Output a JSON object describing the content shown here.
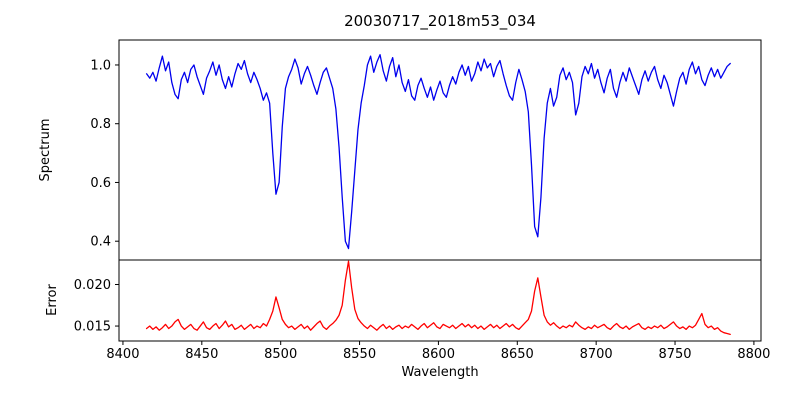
{
  "chart_data": {
    "type": "line",
    "title": "20030717_2018m53_034",
    "xlabel": "Wavelength",
    "xlim": [
      8397.5,
      8804.5
    ],
    "x_ticks": [
      8400,
      8450,
      8500,
      8550,
      8600,
      8650,
      8700,
      8750,
      8800
    ],
    "x_tick_labels": [
      "8400",
      "8450",
      "8500",
      "8550",
      "8600",
      "8650",
      "8700",
      "8750",
      "8800"
    ],
    "x_start": 8415,
    "x_step": 2,
    "grid": false,
    "legend": "none",
    "background_color": "#ffffff",
    "axis_color": "#000000",
    "panels": [
      {
        "name": "spectrum",
        "ylabel": "Spectrum",
        "ylim": [
          0.336,
          1.085
        ],
        "y_ticks": [
          0.4,
          0.6,
          0.8,
          1.0
        ],
        "y_tick_labels": [
          "0.4",
          "0.6",
          "0.8",
          "1.0"
        ]
      },
      {
        "name": "error",
        "ylabel": "Error",
        "ylim": [
          0.0132,
          0.02295
        ],
        "y_ticks": [
          0.015,
          0.02
        ],
        "y_tick_labels": [
          "0.015",
          "0.020"
        ]
      }
    ],
    "absorption_lines": [
      {
        "wavelength": 8498,
        "min_flux": 0.56
      },
      {
        "wavelength": 8542,
        "min_flux": 0.375
      },
      {
        "wavelength": 8662,
        "min_flux": 0.415
      }
    ],
    "series": [
      {
        "name": "spectrum",
        "color": "#0000ee",
        "panel": 0,
        "values": [
          0.97,
          0.955,
          0.975,
          0.945,
          0.99,
          1.03,
          0.98,
          1.01,
          0.94,
          0.9,
          0.885,
          0.95,
          0.975,
          0.94,
          0.985,
          1.0,
          0.96,
          0.93,
          0.9,
          0.955,
          0.98,
          1.01,
          0.965,
          1.0,
          0.95,
          0.92,
          0.96,
          0.925,
          0.97,
          1.005,
          0.985,
          1.015,
          0.97,
          0.94,
          0.975,
          0.95,
          0.92,
          0.88,
          0.905,
          0.87,
          0.7,
          0.56,
          0.6,
          0.79,
          0.92,
          0.96,
          0.985,
          1.02,
          0.99,
          0.935,
          0.97,
          0.995,
          0.965,
          0.93,
          0.9,
          0.94,
          0.975,
          0.99,
          0.955,
          0.92,
          0.85,
          0.72,
          0.55,
          0.4,
          0.375,
          0.5,
          0.64,
          0.78,
          0.87,
          0.93,
          1.0,
          1.03,
          0.975,
          1.01,
          1.035,
          0.98,
          0.945,
          0.995,
          1.025,
          0.96,
          1.0,
          0.94,
          0.91,
          0.95,
          0.895,
          0.88,
          0.93,
          0.955,
          0.92,
          0.89,
          0.925,
          0.88,
          0.915,
          0.945,
          0.905,
          0.89,
          0.93,
          0.96,
          0.935,
          0.975,
          1.0,
          0.965,
          0.995,
          0.945,
          0.97,
          1.01,
          0.98,
          1.02,
          0.99,
          1.005,
          0.96,
          0.995,
          1.015,
          0.97,
          0.93,
          0.895,
          0.88,
          0.94,
          0.985,
          0.95,
          0.91,
          0.84,
          0.66,
          0.45,
          0.415,
          0.55,
          0.75,
          0.87,
          0.92,
          0.86,
          0.89,
          0.965,
          0.99,
          0.95,
          0.975,
          0.94,
          0.83,
          0.87,
          0.96,
          0.995,
          0.97,
          1.005,
          0.955,
          0.985,
          0.94,
          0.905,
          0.955,
          0.985,
          0.92,
          0.89,
          0.94,
          0.975,
          0.945,
          0.99,
          0.96,
          0.93,
          0.9,
          0.95,
          0.98,
          0.945,
          0.975,
          0.995,
          0.95,
          0.92,
          0.965,
          0.94,
          0.9,
          0.86,
          0.91,
          0.955,
          0.975,
          0.935,
          0.985,
          1.01,
          0.97,
          0.995,
          0.95,
          0.93,
          0.965,
          0.99,
          0.96,
          0.985,
          0.955,
          0.975,
          0.995,
          1.005
        ]
      },
      {
        "name": "error",
        "color": "#ff0000",
        "panel": 1,
        "values": [
          0.0147,
          0.015,
          0.0146,
          0.0149,
          0.0145,
          0.0148,
          0.0152,
          0.0147,
          0.015,
          0.0155,
          0.0158,
          0.015,
          0.0146,
          0.0149,
          0.0152,
          0.0147,
          0.0145,
          0.015,
          0.0155,
          0.0148,
          0.0146,
          0.015,
          0.0153,
          0.0147,
          0.0151,
          0.0156,
          0.0149,
          0.0152,
          0.0146,
          0.0148,
          0.0151,
          0.0146,
          0.0149,
          0.0152,
          0.0147,
          0.015,
          0.0148,
          0.0153,
          0.015,
          0.0158,
          0.0168,
          0.0185,
          0.0172,
          0.0158,
          0.0152,
          0.0148,
          0.015,
          0.0146,
          0.0149,
          0.0152,
          0.0147,
          0.015,
          0.0145,
          0.0149,
          0.0153,
          0.0156,
          0.0149,
          0.0146,
          0.015,
          0.0153,
          0.0157,
          0.0163,
          0.0175,
          0.0205,
          0.0228,
          0.0196,
          0.017,
          0.0159,
          0.0154,
          0.015,
          0.0147,
          0.0151,
          0.0148,
          0.0145,
          0.0149,
          0.0152,
          0.0147,
          0.015,
          0.0146,
          0.0149,
          0.0151,
          0.0147,
          0.015,
          0.0148,
          0.0152,
          0.0149,
          0.0146,
          0.015,
          0.0153,
          0.0148,
          0.0151,
          0.0154,
          0.0149,
          0.0147,
          0.0152,
          0.015,
          0.0148,
          0.0151,
          0.0147,
          0.015,
          0.0153,
          0.0149,
          0.0152,
          0.0148,
          0.0151,
          0.0147,
          0.015,
          0.0146,
          0.0149,
          0.0152,
          0.0148,
          0.0151,
          0.0147,
          0.015,
          0.0153,
          0.0149,
          0.0152,
          0.0148,
          0.0146,
          0.015,
          0.0154,
          0.0158,
          0.0168,
          0.0192,
          0.0208,
          0.0185,
          0.0163,
          0.0155,
          0.0151,
          0.0154,
          0.015,
          0.0147,
          0.015,
          0.0148,
          0.0151,
          0.0149,
          0.0155,
          0.0151,
          0.0148,
          0.0146,
          0.0149,
          0.0147,
          0.0151,
          0.0148,
          0.015,
          0.0152,
          0.0148,
          0.0146,
          0.015,
          0.0153,
          0.0149,
          0.0147,
          0.015,
          0.0146,
          0.0149,
          0.0151,
          0.0153,
          0.0148,
          0.0146,
          0.0149,
          0.0147,
          0.015,
          0.0148,
          0.0151,
          0.0147,
          0.0149,
          0.0152,
          0.0155,
          0.015,
          0.0147,
          0.0149,
          0.0146,
          0.015,
          0.0148,
          0.0151,
          0.0158,
          0.0165,
          0.0152,
          0.0148,
          0.015,
          0.0146,
          0.0148,
          0.0144,
          0.0142,
          0.0141,
          0.014
        ]
      }
    ]
  }
}
